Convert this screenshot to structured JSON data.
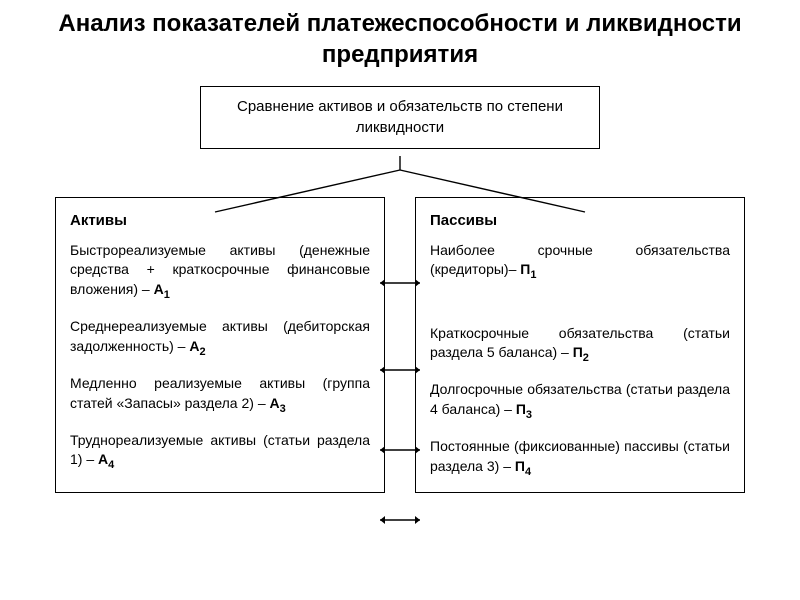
{
  "title": "Анализ показателей платежеспособности и ликвидности предприятия",
  "topBox": "Сравнение активов и обязательств по степени ликвидности",
  "left": {
    "heading": "Активы",
    "items": [
      {
        "text": "Быстрореализуемые активы (денежные средства + краткосрочные финансовые вложения) – ",
        "code": "А",
        "sub": "1"
      },
      {
        "text": "Среднереализуемые активы (дебиторская задолженность) – ",
        "code": "А",
        "sub": "2"
      },
      {
        "text": "Медленно реализуемые активы (группа статей «Запасы» раздела 2) – ",
        "code": "А",
        "sub": "3"
      },
      {
        "text": "Труднореализуемые активы (статьи раздела 1) – ",
        "code": "А",
        "sub": "4"
      }
    ]
  },
  "right": {
    "heading": "Пассивы",
    "items": [
      {
        "text": "Наиболее срочные обязательства (кредиторы)– ",
        "code": "П",
        "sub": "1"
      },
      {
        "text": "Краткосрочные обязательства (статьи раздела 5 баланса) – ",
        "code": "П",
        "sub": "2"
      },
      {
        "text": "Долгосрочные обязательства (статьи раздела 4 баланса) – ",
        "code": "П",
        "sub": "3"
      },
      {
        "text": "Постоянные (фиксиованные) пассивы (статьи раздела 3) – ",
        "code": "П",
        "sub": "4"
      }
    ]
  },
  "diagram": {
    "topBoxBottom": 156,
    "topBoxCenterX": 400,
    "vLineLen": 14,
    "colTopY": 212,
    "leftColTopX": 215,
    "rightColTopX": 585,
    "arrowYs": [
      283,
      370,
      450,
      520
    ],
    "arrowX1": 380,
    "arrowX2": 420,
    "strokeColor": "#000000",
    "strokeWidth": 1.4
  }
}
